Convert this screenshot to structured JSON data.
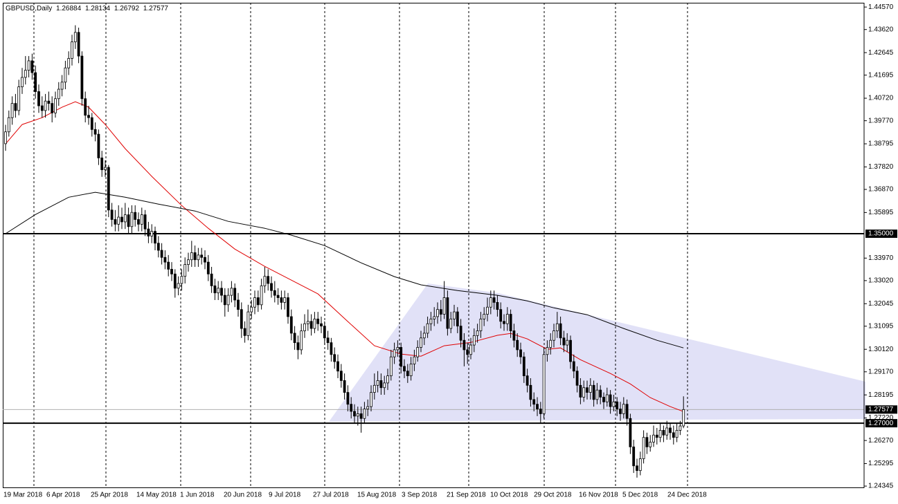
{
  "chart_data": {
    "type": "candlestick",
    "title": "GBPUSD,Daily",
    "bull_color": "#ffffff",
    "bear_color": "#000000",
    "ylim": [
      1.2426,
      1.4475
    ],
    "yticks": [
      {
        "value": 1.4457,
        "label": "1.44570"
      },
      {
        "value": 1.4362,
        "label": "1.43620"
      },
      {
        "value": 1.42645,
        "label": "1.42645"
      },
      {
        "value": 1.41695,
        "label": "1.41695"
      },
      {
        "value": 1.4072,
        "label": "1.40720"
      },
      {
        "value": 1.3977,
        "label": "1.39770"
      },
      {
        "value": 1.38795,
        "label": "1.38795"
      },
      {
        "value": 1.3782,
        "label": "1.37820"
      },
      {
        "value": 1.3687,
        "label": "1.36870"
      },
      {
        "value": 1.35895,
        "label": "1.35895"
      },
      {
        "value": 1.3397,
        "label": "1.33970"
      },
      {
        "value": 1.3302,
        "label": "1.33020"
      },
      {
        "value": 1.32045,
        "label": "1.32045"
      },
      {
        "value": 1.31095,
        "label": "1.31095"
      },
      {
        "value": 1.3012,
        "label": "1.30120"
      },
      {
        "value": 1.2917,
        "label": "1.29170"
      },
      {
        "value": 1.28195,
        "label": "1.28195"
      },
      {
        "value": 1.2722,
        "label": "1.27220"
      },
      {
        "value": 1.2627,
        "label": "1.26270"
      },
      {
        "value": 1.25295,
        "label": "1.25295"
      },
      {
        "value": 1.24345,
        "label": "1.24345"
      }
    ],
    "x_labels": [
      "19 Mar 2018",
      "6 Apr 2018",
      "25 Apr 2018",
      "14 May 2018",
      "1 Jun 2018",
      "20 Jun 2018",
      "9 Jul 2018",
      "27 Jul 2018",
      "15 Aug 2018",
      "3 Sep 2018",
      "21 Sep 2018",
      "10 Oct 2018",
      "29 Oct 2018",
      "16 Nov 2018",
      "5 Dec 2018",
      "24 Dec 2018"
    ],
    "hlines": [
      {
        "value": 1.35,
        "label": "1.35000"
      },
      {
        "value": 1.27,
        "label": "1.27000"
      }
    ],
    "lines": [
      {
        "color": "#e00000",
        "x": [
          0,
          5,
          11,
          17,
          21,
          25,
          30,
          36,
          44,
          53,
          61,
          69,
          78,
          86,
          94,
          103,
          111,
          119,
          125,
          132,
          140,
          148,
          152,
          157,
          163,
          167,
          173,
          182,
          188,
          194,
          200,
          204
        ],
        "values": [
          1.3879,
          1.3961,
          1.399,
          1.4034,
          1.4057,
          1.4034,
          1.3961,
          1.3859,
          1.3742,
          1.3619,
          1.3523,
          1.3435,
          1.3362,
          1.3304,
          1.3246,
          1.3129,
          1.3027,
          1.2992,
          1.2983,
          1.3027,
          1.3041,
          1.3071,
          1.3079,
          1.3056,
          1.3012,
          1.3018,
          1.2968,
          1.291,
          1.2866,
          1.2808,
          1.277,
          1.2749
        ]
      },
      {
        "color": "#000000",
        "x": [
          0,
          9,
          19,
          27,
          36,
          46,
          57,
          67,
          78,
          86,
          96,
          107,
          117,
          125,
          136,
          148,
          157,
          165,
          175,
          186,
          196,
          204
        ],
        "values": [
          1.35,
          1.3581,
          1.3654,
          1.3675,
          1.3654,
          1.3625,
          1.3596,
          1.3552,
          1.3523,
          1.3494,
          1.345,
          1.3377,
          1.3319,
          1.3284,
          1.326,
          1.324,
          1.3216,
          1.3187,
          1.3158,
          1.31,
          1.305,
          1.3018
        ]
      }
    ],
    "candles": [
      [
        1.388,
        1.396,
        1.385,
        1.393
      ],
      [
        1.393,
        1.402,
        1.391,
        1.399
      ],
      [
        1.399,
        1.408,
        1.396,
        1.405
      ],
      [
        1.405,
        1.409,
        1.399,
        1.402
      ],
      [
        1.402,
        1.415,
        1.4,
        1.412
      ],
      [
        1.412,
        1.42,
        1.409,
        1.416
      ],
      [
        1.416,
        1.425,
        1.413,
        1.419
      ],
      [
        1.419,
        1.425,
        1.416,
        1.423
      ],
      [
        1.423,
        1.426,
        1.415,
        1.418
      ],
      [
        1.418,
        1.421,
        1.407,
        1.41
      ],
      [
        1.41,
        1.413,
        1.401,
        1.404
      ],
      [
        1.404,
        1.408,
        1.399,
        1.402
      ],
      [
        1.402,
        1.409,
        1.399,
        1.406
      ],
      [
        1.406,
        1.41,
        1.402,
        1.405
      ],
      [
        1.405,
        1.408,
        1.397,
        1.401
      ],
      [
        1.401,
        1.41,
        1.399,
        1.407
      ],
      [
        1.407,
        1.414,
        1.404,
        1.411
      ],
      [
        1.411,
        1.417,
        1.408,
        1.414
      ],
      [
        1.414,
        1.423,
        1.411,
        1.42
      ],
      [
        1.42,
        1.427,
        1.417,
        1.424
      ],
      [
        1.424,
        1.434,
        1.421,
        1.431
      ],
      [
        1.431,
        1.438,
        1.428,
        1.435
      ],
      [
        1.435,
        1.437,
        1.422,
        1.425
      ],
      [
        1.425,
        1.427,
        1.404,
        1.407
      ],
      [
        1.407,
        1.41,
        1.397,
        1.4
      ],
      [
        1.4,
        1.404,
        1.396,
        1.399
      ],
      [
        1.399,
        1.401,
        1.391,
        1.394
      ],
      [
        1.394,
        1.397,
        1.389,
        1.392
      ],
      [
        1.392,
        1.394,
        1.379,
        1.382
      ],
      [
        1.382,
        1.385,
        1.374,
        1.377
      ],
      [
        1.377,
        1.381,
        1.374,
        1.378
      ],
      [
        1.378,
        1.379,
        1.357,
        1.36
      ],
      [
        1.36,
        1.363,
        1.353,
        1.356
      ],
      [
        1.356,
        1.36,
        1.351,
        1.354
      ],
      [
        1.354,
        1.362,
        1.351,
        1.357
      ],
      [
        1.357,
        1.361,
        1.352,
        1.355
      ],
      [
        1.355,
        1.363,
        1.352,
        1.358
      ],
      [
        1.358,
        1.361,
        1.35,
        1.353
      ],
      [
        1.353,
        1.362,
        1.35,
        1.359
      ],
      [
        1.359,
        1.362,
        1.353,
        1.356
      ],
      [
        1.356,
        1.359,
        1.351,
        1.354
      ],
      [
        1.354,
        1.361,
        1.351,
        1.358
      ],
      [
        1.358,
        1.36,
        1.349,
        1.352
      ],
      [
        1.352,
        1.355,
        1.346,
        1.349
      ],
      [
        1.349,
        1.354,
        1.346,
        1.351
      ],
      [
        1.351,
        1.353,
        1.343,
        1.346
      ],
      [
        1.346,
        1.349,
        1.34,
        1.343
      ],
      [
        1.343,
        1.346,
        1.337,
        1.34
      ],
      [
        1.34,
        1.343,
        1.335,
        1.338
      ],
      [
        1.338,
        1.341,
        1.332,
        1.335
      ],
      [
        1.335,
        1.338,
        1.33,
        1.333
      ],
      [
        1.333,
        1.335,
        1.323,
        1.327
      ],
      [
        1.327,
        1.332,
        1.324,
        1.329
      ],
      [
        1.329,
        1.335,
        1.326,
        1.332
      ],
      [
        1.332,
        1.34,
        1.329,
        1.337
      ],
      [
        1.337,
        1.342,
        1.334,
        1.339
      ],
      [
        1.339,
        1.347,
        1.336,
        1.342
      ],
      [
        1.342,
        1.345,
        1.336,
        1.339
      ],
      [
        1.339,
        1.344,
        1.336,
        1.341
      ],
      [
        1.341,
        1.344,
        1.337,
        1.34
      ],
      [
        1.34,
        1.343,
        1.335,
        1.338
      ],
      [
        1.338,
        1.341,
        1.33,
        1.333
      ],
      [
        1.333,
        1.336,
        1.325,
        1.328
      ],
      [
        1.328,
        1.331,
        1.322,
        1.325
      ],
      [
        1.325,
        1.33,
        1.322,
        1.327
      ],
      [
        1.327,
        1.33,
        1.321,
        1.324
      ],
      [
        1.324,
        1.327,
        1.315,
        1.32
      ],
      [
        1.32,
        1.327,
        1.317,
        1.324
      ],
      [
        1.324,
        1.33,
        1.321,
        1.327
      ],
      [
        1.327,
        1.329,
        1.319,
        1.322
      ],
      [
        1.322,
        1.325,
        1.315,
        1.318
      ],
      [
        1.318,
        1.321,
        1.306,
        1.31
      ],
      [
        1.31,
        1.313,
        1.304,
        1.307
      ],
      [
        1.307,
        1.32,
        1.305,
        1.317
      ],
      [
        1.317,
        1.322,
        1.314,
        1.319
      ],
      [
        1.319,
        1.326,
        1.316,
        1.323
      ],
      [
        1.323,
        1.326,
        1.317,
        1.32
      ],
      [
        1.32,
        1.331,
        1.318,
        1.328
      ],
      [
        1.328,
        1.336,
        1.325,
        1.332
      ],
      [
        1.332,
        1.335,
        1.326,
        1.329
      ],
      [
        1.329,
        1.332,
        1.323,
        1.326
      ],
      [
        1.326,
        1.33,
        1.321,
        1.324
      ],
      [
        1.324,
        1.327,
        1.32,
        1.323
      ],
      [
        1.323,
        1.326,
        1.318,
        1.321
      ],
      [
        1.321,
        1.326,
        1.318,
        1.323
      ],
      [
        1.323,
        1.325,
        1.312,
        1.315
      ],
      [
        1.315,
        1.318,
        1.305,
        1.308
      ],
      [
        1.308,
        1.311,
        1.301,
        1.304
      ],
      [
        1.304,
        1.307,
        1.297,
        1.301
      ],
      [
        1.301,
        1.312,
        1.299,
        1.309
      ],
      [
        1.309,
        1.316,
        1.306,
        1.312
      ],
      [
        1.312,
        1.318,
        1.309,
        1.313
      ],
      [
        1.313,
        1.316,
        1.307,
        1.31
      ],
      [
        1.31,
        1.317,
        1.308,
        1.314
      ],
      [
        1.314,
        1.317,
        1.309,
        1.312
      ],
      [
        1.312,
        1.315,
        1.308,
        1.311
      ],
      [
        1.311,
        1.313,
        1.303,
        1.306
      ],
      [
        1.306,
        1.309,
        1.301,
        1.304
      ],
      [
        1.304,
        1.306,
        1.296,
        1.299
      ],
      [
        1.299,
        1.302,
        1.293,
        1.296
      ],
      [
        1.296,
        1.299,
        1.289,
        1.292
      ],
      [
        1.292,
        1.295,
        1.285,
        1.288
      ],
      [
        1.288,
        1.291,
        1.28,
        1.283
      ],
      [
        1.283,
        1.286,
        1.275,
        1.278
      ],
      [
        1.278,
        1.281,
        1.272,
        1.275
      ],
      [
        1.275,
        1.278,
        1.27,
        1.273
      ],
      [
        1.273,
        1.277,
        1.269,
        1.274
      ],
      [
        1.274,
        1.277,
        1.266,
        1.272
      ],
      [
        1.272,
        1.279,
        1.27,
        1.276
      ],
      [
        1.276,
        1.28,
        1.273,
        1.277
      ],
      [
        1.277,
        1.286,
        1.275,
        1.283
      ],
      [
        1.283,
        1.291,
        1.28,
        1.286
      ],
      [
        1.286,
        1.292,
        1.283,
        1.288
      ],
      [
        1.288,
        1.291,
        1.282,
        1.285
      ],
      [
        1.285,
        1.29,
        1.282,
        1.287
      ],
      [
        1.287,
        1.293,
        1.284,
        1.29
      ],
      [
        1.29,
        1.301,
        1.288,
        1.298
      ],
      [
        1.298,
        1.304,
        1.295,
        1.301
      ],
      [
        1.301,
        1.305,
        1.298,
        1.302
      ],
      [
        1.302,
        1.304,
        1.291,
        1.294
      ],
      [
        1.294,
        1.297,
        1.289,
        1.292
      ],
      [
        1.292,
        1.295,
        1.287,
        1.29
      ],
      [
        1.29,
        1.298,
        1.288,
        1.295
      ],
      [
        1.295,
        1.301,
        1.292,
        1.298
      ],
      [
        1.298,
        1.305,
        1.296,
        1.302
      ],
      [
        1.302,
        1.309,
        1.3,
        1.306
      ],
      [
        1.306,
        1.311,
        1.303,
        1.308
      ],
      [
        1.308,
        1.315,
        1.306,
        1.312
      ],
      [
        1.312,
        1.317,
        1.309,
        1.314
      ],
      [
        1.314,
        1.319,
        1.311,
        1.315
      ],
      [
        1.315,
        1.321,
        1.312,
        1.318
      ],
      [
        1.318,
        1.322,
        1.313,
        1.316
      ],
      [
        1.316,
        1.33,
        1.314,
        1.323
      ],
      [
        1.323,
        1.326,
        1.307,
        1.31
      ],
      [
        1.31,
        1.317,
        1.308,
        1.314
      ],
      [
        1.314,
        1.32,
        1.311,
        1.317
      ],
      [
        1.317,
        1.319,
        1.308,
        1.311
      ],
      [
        1.311,
        1.314,
        1.302,
        1.305
      ],
      [
        1.305,
        1.308,
        1.294,
        1.301
      ],
      [
        1.301,
        1.304,
        1.295,
        1.299
      ],
      [
        1.299,
        1.306,
        1.297,
        1.303
      ],
      [
        1.303,
        1.31,
        1.3,
        1.307
      ],
      [
        1.307,
        1.312,
        1.304,
        1.309
      ],
      [
        1.309,
        1.317,
        1.306,
        1.314
      ],
      [
        1.314,
        1.319,
        1.311,
        1.316
      ],
      [
        1.316,
        1.323,
        1.313,
        1.319
      ],
      [
        1.319,
        1.326,
        1.316,
        1.323
      ],
      [
        1.323,
        1.326,
        1.318,
        1.321
      ],
      [
        1.321,
        1.324,
        1.315,
        1.318
      ],
      [
        1.318,
        1.321,
        1.31,
        1.313
      ],
      [
        1.313,
        1.316,
        1.309,
        1.312
      ],
      [
        1.312,
        1.319,
        1.309,
        1.316
      ],
      [
        1.316,
        1.318,
        1.306,
        1.309
      ],
      [
        1.309,
        1.312,
        1.302,
        1.305
      ],
      [
        1.305,
        1.308,
        1.298,
        1.301
      ],
      [
        1.301,
        1.304,
        1.295,
        1.298
      ],
      [
        1.298,
        1.3,
        1.287,
        1.29
      ],
      [
        1.29,
        1.293,
        1.283,
        1.286
      ],
      [
        1.286,
        1.289,
        1.277,
        1.28
      ],
      [
        1.28,
        1.283,
        1.275,
        1.278
      ],
      [
        1.278,
        1.281,
        1.273,
        1.276
      ],
      [
        1.276,
        1.279,
        1.27,
        1.274
      ],
      [
        1.274,
        1.302,
        1.272,
        1.299
      ],
      [
        1.299,
        1.305,
        1.296,
        1.302
      ],
      [
        1.302,
        1.308,
        1.299,
        1.305
      ],
      [
        1.305,
        1.312,
        1.302,
        1.309
      ],
      [
        1.309,
        1.317,
        1.306,
        1.312
      ],
      [
        1.312,
        1.315,
        1.303,
        1.306
      ],
      [
        1.306,
        1.309,
        1.3,
        1.303
      ],
      [
        1.303,
        1.308,
        1.3,
        1.305
      ],
      [
        1.305,
        1.307,
        1.293,
        1.296
      ],
      [
        1.296,
        1.299,
        1.289,
        1.292
      ],
      [
        1.292,
        1.294,
        1.283,
        1.286
      ],
      [
        1.286,
        1.289,
        1.278,
        1.281
      ],
      [
        1.281,
        1.288,
        1.279,
        1.285
      ],
      [
        1.285,
        1.288,
        1.28,
        1.283
      ],
      [
        1.283,
        1.289,
        1.28,
        1.286
      ],
      [
        1.286,
        1.288,
        1.277,
        1.28
      ],
      [
        1.28,
        1.287,
        1.278,
        1.284
      ],
      [
        1.284,
        1.286,
        1.278,
        1.281
      ],
      [
        1.281,
        1.283,
        1.276,
        1.279
      ],
      [
        1.279,
        1.285,
        1.277,
        1.282
      ],
      [
        1.282,
        1.284,
        1.274,
        1.277
      ],
      [
        1.277,
        1.282,
        1.275,
        1.279
      ],
      [
        1.279,
        1.281,
        1.273,
        1.276
      ],
      [
        1.276,
        1.279,
        1.271,
        1.274
      ],
      [
        1.274,
        1.281,
        1.272,
        1.278
      ],
      [
        1.278,
        1.28,
        1.269,
        1.272
      ],
      [
        1.272,
        1.274,
        1.257,
        1.26
      ],
      [
        1.26,
        1.263,
        1.249,
        1.252
      ],
      [
        1.252,
        1.255,
        1.247,
        1.25
      ],
      [
        1.25,
        1.258,
        1.248,
        1.255
      ],
      [
        1.255,
        1.267,
        1.253,
        1.264
      ],
      [
        1.264,
        1.266,
        1.257,
        1.26
      ],
      [
        1.26,
        1.265,
        1.258,
        1.262
      ],
      [
        1.262,
        1.269,
        1.26,
        1.265
      ],
      [
        1.265,
        1.268,
        1.261,
        1.264
      ],
      [
        1.264,
        1.27,
        1.262,
        1.267
      ],
      [
        1.267,
        1.269,
        1.262,
        1.265
      ],
      [
        1.265,
        1.271,
        1.263,
        1.268
      ],
      [
        1.268,
        1.27,
        1.263,
        1.266
      ],
      [
        1.266,
        1.269,
        1.261,
        1.264
      ],
      [
        1.264,
        1.27,
        1.262,
        1.267
      ],
      [
        1.267,
        1.271,
        1.265,
        1.26884
      ],
      [
        1.26884,
        1.28134,
        1.26792,
        1.27577
      ]
    ]
  }
}
